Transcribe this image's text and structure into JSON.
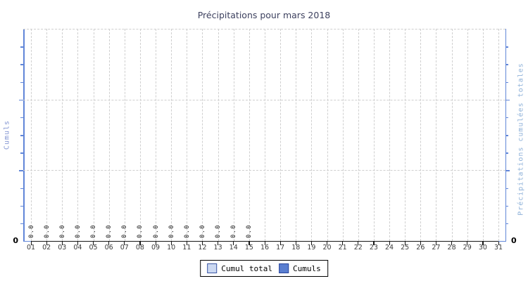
{
  "title": "Précipitations pour mars 2018",
  "axes": {
    "left_label": "Cumuls",
    "right_label": "Précipitations cumulées totales",
    "left_origin_label": "0",
    "right_origin_label": "0"
  },
  "legend": {
    "position": "bottom",
    "items": [
      {
        "label": "Cumul total",
        "fill": "#ccd9f2",
        "border": "#3a56a4"
      },
      {
        "label": "Cumuls",
        "fill": "#5a7ed0",
        "border": "#29459c"
      }
    ]
  },
  "chart_data": {
    "type": "line",
    "title": "Précipitations pour mars 2018",
    "xlabel": "",
    "ylabel_left": "Cumuls",
    "ylabel_right": "Précipitations cumulées totales",
    "categories": [
      "01",
      "02",
      "03",
      "04",
      "05",
      "06",
      "07",
      "08",
      "09",
      "10",
      "11",
      "12",
      "13",
      "14",
      "15",
      "16",
      "17",
      "18",
      "19",
      "20",
      "21",
      "22",
      "23",
      "24",
      "25",
      "26",
      "27",
      "28",
      "29",
      "30",
      "31"
    ],
    "series": [
      {
        "name": "Cumul total",
        "values": [
          0,
          0,
          0,
          0,
          0,
          0,
          0,
          0,
          0,
          0,
          0,
          0,
          0,
          0,
          0,
          null,
          null,
          null,
          null,
          null,
          null,
          null,
          null,
          null,
          null,
          null,
          null,
          null,
          null,
          null,
          null
        ]
      },
      {
        "name": "Cumuls",
        "values": [
          0,
          0,
          0,
          0,
          0,
          0,
          0,
          0,
          0,
          0,
          0,
          0,
          0,
          0,
          0,
          null,
          null,
          null,
          null,
          null,
          null,
          null,
          null,
          null,
          null,
          null,
          null,
          null,
          null,
          null,
          null
        ]
      }
    ],
    "point_label_decimals": 1,
    "ylim": [
      0,
      null
    ],
    "yticks_labeled": [
      "0"
    ],
    "grid": true,
    "legend_position": "bottom"
  },
  "colors": {
    "title": "#3d415f",
    "axis_vertical": "#6186d8",
    "axis_bottom": "#161616",
    "gridline": "#cfcfcf",
    "x_tick_label": "#3a3a3a",
    "left_axis_title": "#8294d2",
    "right_axis_title": "#8fb2d9",
    "point_label": "#111111",
    "legend_swatch_cumul_total": "#ccd9f2",
    "legend_swatch_cumuls": "#5a7ed0"
  }
}
